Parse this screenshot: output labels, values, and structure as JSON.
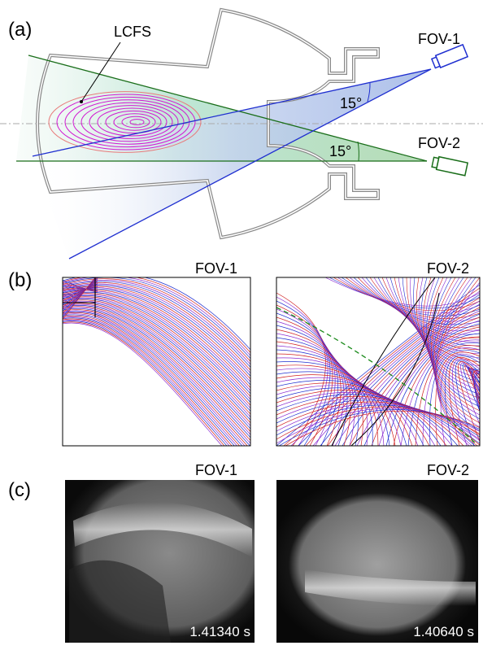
{
  "panel_a": {
    "label": "(a)",
    "lcfs": "LCFS",
    "fov1": "FOV-1",
    "fov2": "FOV-2",
    "angle1": "15°",
    "angle2": "15°"
  },
  "panel_b": {
    "label": "(b)",
    "left_title": "FOV-1",
    "right_title": "FOV-2"
  },
  "panel_c": {
    "label": "(c)",
    "left_title": "FOV-1",
    "right_title": "FOV-2",
    "left_time": "1.41340 s",
    "right_time": "1.40640 s"
  }
}
